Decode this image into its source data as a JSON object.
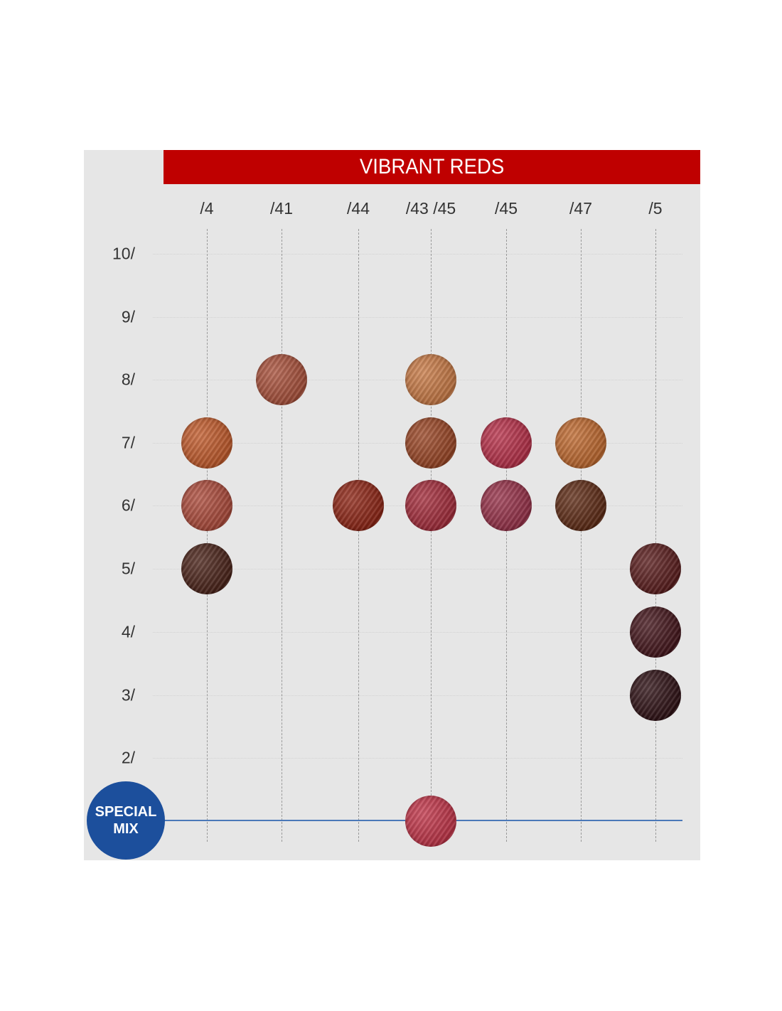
{
  "title": "VIBRANT REDS",
  "columns": [
    "/4",
    "/41",
    "/44",
    "/43 /45",
    "/45",
    "/47",
    "/5"
  ],
  "rows": [
    "10/",
    "9/",
    "8/",
    "7/",
    "6/",
    "5/",
    "4/",
    "3/",
    "2/"
  ],
  "special_mix": {
    "line1": "SPECIAL",
    "line2": "MIX"
  },
  "colors": {
    "banner": "#bf0000",
    "panel": "#e6e6e6",
    "special_badge": "#1c4f9c",
    "mix_line": "#4a78b8"
  },
  "swatches": [
    {
      "column": "/4",
      "level": "7/",
      "color": "#c25a2a"
    },
    {
      "column": "/4",
      "level": "6/",
      "color": "#ad4a3a"
    },
    {
      "column": "/4",
      "level": "5/",
      "color": "#4a2218"
    },
    {
      "column": "/41",
      "level": "8/",
      "color": "#a9503a"
    },
    {
      "column": "/44",
      "level": "6/",
      "color": "#8e2414"
    },
    {
      "column": "/43 /45",
      "level": "8/",
      "color": "#c97a45"
    },
    {
      "column": "/43 /45",
      "level": "7/",
      "color": "#9a4524"
    },
    {
      "column": "/43 /45",
      "level": "6/",
      "color": "#a42b3a"
    },
    {
      "column": "/45",
      "level": "7/",
      "color": "#b82f48"
    },
    {
      "column": "/45",
      "level": "6/",
      "color": "#973048"
    },
    {
      "column": "/47",
      "level": "7/",
      "color": "#c0692e"
    },
    {
      "column": "/47",
      "level": "6/",
      "color": "#5e2a14"
    },
    {
      "column": "/5",
      "level": "5/",
      "color": "#5a1c1c"
    },
    {
      "column": "/5",
      "level": "4/",
      "color": "#43141a"
    },
    {
      "column": "/5",
      "level": "3/",
      "color": "#2e1014"
    },
    {
      "column": "/43 /45",
      "level": "SPECIAL MIX",
      "color": "#c23448"
    }
  ]
}
